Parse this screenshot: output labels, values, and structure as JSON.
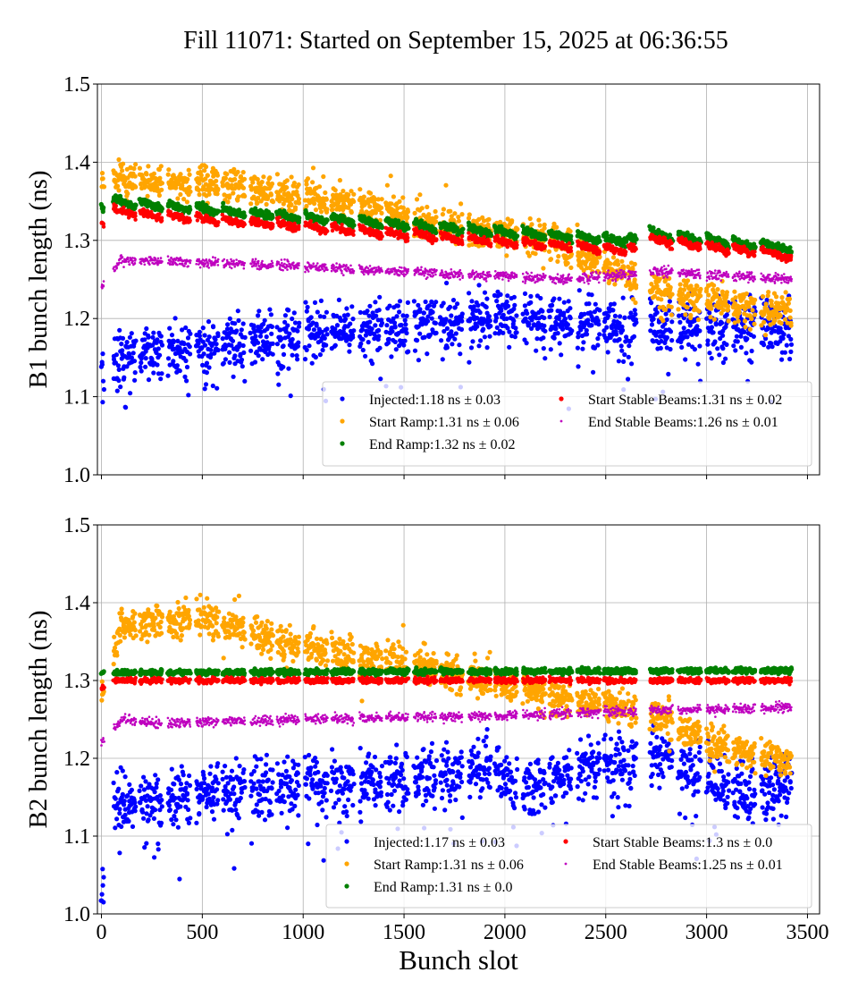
{
  "title": "Fill 11071: Started on September 15, 2025 at 06:36:55",
  "colors": {
    "Injected": "#0000ff",
    "Start Ramp": "#ffa500",
    "End Ramp": "#008000",
    "Start Stable Beams": "#ff0000",
    "End Stable Beams": "#bf00bf"
  },
  "chart_data": [
    {
      "type": "scatter",
      "ylabel": "B1 bunch length (ns)",
      "xlabel": "",
      "xlim": [
        -20,
        3560
      ],
      "ylim": [
        1.0,
        1.5
      ],
      "xticks": [
        0,
        500,
        1000,
        1500,
        2000,
        2500,
        3000,
        3500
      ],
      "yticks": [
        "1.0",
        "1.1",
        "1.2",
        "1.3",
        "1.4",
        "1.5"
      ],
      "grid": true,
      "legend_position": "lower-right",
      "filled_slot_ranges": [
        [
          0,
          12
        ],
        [
          60,
          170
        ],
        [
          190,
          300
        ],
        [
          330,
          440
        ],
        [
          470,
          580
        ],
        [
          600,
          710
        ],
        [
          740,
          850
        ],
        [
          870,
          980
        ],
        [
          1010,
          1120
        ],
        [
          1140,
          1250
        ],
        [
          1280,
          1390
        ],
        [
          1410,
          1520
        ],
        [
          1550,
          1660
        ],
        [
          1680,
          1790
        ],
        [
          1820,
          1930
        ],
        [
          1950,
          2060
        ],
        [
          2090,
          2200
        ],
        [
          2220,
          2330
        ],
        [
          2360,
          2470
        ],
        [
          2490,
          2600
        ],
        [
          2610,
          2650
        ],
        [
          2720,
          2830
        ],
        [
          2860,
          2970
        ],
        [
          3000,
          3110
        ],
        [
          3130,
          3240
        ],
        [
          3270,
          3420
        ]
      ],
      "series": [
        {
          "name": "Injected",
          "legend": "Injected:1.18 ns ± 0.03",
          "mean_vs_slot": [
            [
              0,
              1.12
            ],
            [
              100,
              1.15
            ],
            [
              700,
              1.17
            ],
            [
              1500,
              1.19
            ],
            [
              2000,
              1.2
            ],
            [
              2500,
              1.19
            ],
            [
              3000,
              1.19
            ],
            [
              3400,
              1.19
            ]
          ],
          "spread": 0.03
        },
        {
          "name": "Start Ramp",
          "legend": "Start Ramp:1.31 ns ± 0.06",
          "mean_vs_slot": [
            [
              0,
              1.38
            ],
            [
              100,
              1.38
            ],
            [
              700,
              1.37
            ],
            [
              1200,
              1.35
            ],
            [
              1700,
              1.32
            ],
            [
              2200,
              1.3
            ],
            [
              2500,
              1.27
            ],
            [
              2800,
              1.23
            ],
            [
              3400,
              1.21
            ]
          ],
          "spread": 0.018
        },
        {
          "name": "End Ramp",
          "legend": "End Ramp:1.32 ns ± 0.02",
          "mean_vs_slot": [
            [
              0,
              1.34
            ],
            [
              60,
              1.35
            ],
            [
              500,
              1.34
            ],
            [
              1000,
              1.33
            ],
            [
              1500,
              1.32
            ],
            [
              2000,
              1.31
            ],
            [
              2600,
              1.3
            ],
            [
              2700,
              1.31
            ],
            [
              3000,
              1.3
            ],
            [
              3420,
              1.29
            ]
          ],
          "spread": 0.004
        },
        {
          "name": "Start Stable Beams",
          "legend": "Start Stable Beams:1.31 ns ± 0.02",
          "mean_vs_slot": [
            [
              0,
              1.32
            ],
            [
              60,
              1.337
            ],
            [
              500,
              1.327
            ],
            [
              1000,
              1.318
            ],
            [
              1500,
              1.308
            ],
            [
              2000,
              1.298
            ],
            [
              2600,
              1.287
            ],
            [
              2700,
              1.302
            ],
            [
              3000,
              1.292
            ],
            [
              3420,
              1.28
            ]
          ],
          "spread": 0.004
        },
        {
          "name": "End Stable Beams",
          "legend": "End Stable Beams:1.26 ns ± 0.01",
          "mean_vs_slot": [
            [
              0,
              1.24
            ],
            [
              100,
              1.275
            ],
            [
              700,
              1.27
            ],
            [
              1500,
              1.26
            ],
            [
              2300,
              1.25
            ],
            [
              2800,
              1.26
            ],
            [
              3420,
              1.25
            ]
          ],
          "spread": 0.005
        }
      ]
    },
    {
      "type": "scatter",
      "ylabel": "B2 bunch length (ns)",
      "xlabel": "Bunch slot",
      "xlim": [
        -20,
        3560
      ],
      "ylim": [
        1.0,
        1.5
      ],
      "xticks": [
        0,
        500,
        1000,
        1500,
        2000,
        2500,
        3000,
        3500
      ],
      "xticklabels": [
        "0",
        "500",
        "1000",
        "1500",
        "2000",
        "2500",
        "3000",
        "3500"
      ],
      "yticks": [
        "1.0",
        "1.1",
        "1.2",
        "1.3",
        "1.4",
        "1.5"
      ],
      "grid": true,
      "legend_position": "lower-right",
      "filled_slot_ranges": [
        [
          0,
          12
        ],
        [
          60,
          170
        ],
        [
          190,
          300
        ],
        [
          330,
          440
        ],
        [
          470,
          580
        ],
        [
          600,
          710
        ],
        [
          740,
          850
        ],
        [
          870,
          980
        ],
        [
          1010,
          1120
        ],
        [
          1140,
          1250
        ],
        [
          1280,
          1390
        ],
        [
          1410,
          1520
        ],
        [
          1550,
          1660
        ],
        [
          1680,
          1790
        ],
        [
          1820,
          1930
        ],
        [
          1950,
          2060
        ],
        [
          2090,
          2200
        ],
        [
          2220,
          2330
        ],
        [
          2360,
          2470
        ],
        [
          2490,
          2600
        ],
        [
          2610,
          2650
        ],
        [
          2720,
          2830
        ],
        [
          2860,
          2970
        ],
        [
          3000,
          3110
        ],
        [
          3130,
          3240
        ],
        [
          3270,
          3420
        ]
      ],
      "series": [
        {
          "name": "Injected",
          "legend": "Injected:1.17 ns ± 0.03",
          "mean_vs_slot": [
            [
              0,
              1.03
            ],
            [
              60,
              1.14
            ],
            [
              700,
              1.16
            ],
            [
              1500,
              1.17
            ],
            [
              1900,
              1.19
            ],
            [
              2100,
              1.16
            ],
            [
              2400,
              1.19
            ],
            [
              2800,
              1.2
            ],
            [
              3200,
              1.15
            ],
            [
              3420,
              1.17
            ]
          ],
          "spread": 0.03
        },
        {
          "name": "Start Ramp",
          "legend": "Start Ramp:1.31 ns ± 0.06",
          "mean_vs_slot": [
            [
              0,
              1.28
            ],
            [
              100,
              1.37
            ],
            [
              500,
              1.38
            ],
            [
              900,
              1.35
            ],
            [
              1300,
              1.33
            ],
            [
              1600,
              1.32
            ],
            [
              1900,
              1.3
            ],
            [
              2200,
              1.28
            ],
            [
              2500,
              1.27
            ],
            [
              2800,
              1.25
            ],
            [
              3100,
              1.21
            ],
            [
              3420,
              1.2
            ]
          ],
          "spread": 0.018
        },
        {
          "name": "End Ramp",
          "legend": "End Ramp:1.31 ns ± 0.0",
          "mean_vs_slot": [
            [
              0,
              1.31
            ],
            [
              3420,
              1.313
            ]
          ],
          "spread": 0.003
        },
        {
          "name": "Start Stable Beams",
          "legend": "Start Stable Beams:1.3 ns ± 0.0",
          "mean_vs_slot": [
            [
              0,
              1.29
            ],
            [
              60,
              1.3
            ],
            [
              3420,
              1.3
            ]
          ],
          "spread": 0.003
        },
        {
          "name": "End Stable Beams",
          "legend": "End Stable Beams:1.25 ns ± 0.01",
          "mean_vs_slot": [
            [
              0,
              1.22
            ],
            [
              100,
              1.25
            ],
            [
              300,
              1.245
            ],
            [
              1000,
              1.25
            ],
            [
              2000,
              1.255
            ],
            [
              2500,
              1.26
            ],
            [
              3420,
              1.265
            ]
          ],
          "spread": 0.005
        }
      ]
    }
  ]
}
